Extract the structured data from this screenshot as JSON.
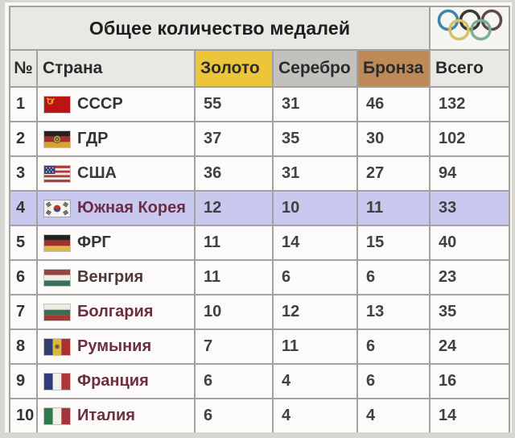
{
  "title": "Общее количество медалей",
  "logo": "olympic-rings",
  "chart_data": {
    "type": "table",
    "title": "Общее количество медалей",
    "columns": [
      "№",
      "Страна",
      "Золото",
      "Серебро",
      "Бронза",
      "Всего"
    ],
    "column_colors": {
      "gold": "#edc53a",
      "silver": "#c2c1bd",
      "bronze": "#bd8a58"
    },
    "header_bg": "#e9e8e5",
    "highlight_color": "#c9c9ef",
    "rows": [
      {
        "rank": 1,
        "country": "СССР",
        "flag": "ussr-flag",
        "gold": 55,
        "silver": 31,
        "bronze": 46,
        "total": 132,
        "highlight": false,
        "name_color": "#343434"
      },
      {
        "rank": 2,
        "country": "ГДР",
        "flag": "gdr-flag",
        "gold": 37,
        "silver": 35,
        "bronze": 30,
        "total": 102,
        "highlight": false,
        "name_color": "#343434"
      },
      {
        "rank": 3,
        "country": "США",
        "flag": "usa-flag",
        "gold": 36,
        "silver": 31,
        "bronze": 27,
        "total": 94,
        "highlight": false,
        "name_color": "#3a3a3a"
      },
      {
        "rank": 4,
        "country": "Южная Корея",
        "flag": "south-korea-flag",
        "gold": 12,
        "silver": 10,
        "bronze": 11,
        "total": 33,
        "highlight": true,
        "name_color": "#6e2c47"
      },
      {
        "rank": 5,
        "country": "ФРГ",
        "flag": "frg-flag",
        "gold": 11,
        "silver": 14,
        "bronze": 15,
        "total": 40,
        "highlight": false,
        "name_color": "#343434"
      },
      {
        "rank": 6,
        "country": "Венгрия",
        "flag": "hungary-flag",
        "gold": 11,
        "silver": 6,
        "bronze": 6,
        "total": 23,
        "highlight": false,
        "name_color": "#4d383c"
      },
      {
        "rank": 7,
        "country": "Болгария",
        "flag": "bulgaria-flag",
        "gold": 10,
        "silver": 12,
        "bronze": 13,
        "total": 35,
        "highlight": false,
        "name_color": "#6c2f40"
      },
      {
        "rank": 8,
        "country": "Румыния",
        "flag": "romania-flag",
        "gold": 7,
        "silver": 11,
        "bronze": 6,
        "total": 24,
        "highlight": false,
        "name_color": "#6c2f40"
      },
      {
        "rank": 9,
        "country": "Франция",
        "flag": "france-flag",
        "gold": 6,
        "silver": 4,
        "bronze": 6,
        "total": 16,
        "highlight": false,
        "name_color": "#6c2f40"
      },
      {
        "rank": 10,
        "country": "Италия",
        "flag": "italy-flag",
        "gold": 6,
        "silver": 4,
        "bronze": 4,
        "total": 14,
        "highlight": false,
        "name_color": "#6c2f40"
      }
    ]
  }
}
